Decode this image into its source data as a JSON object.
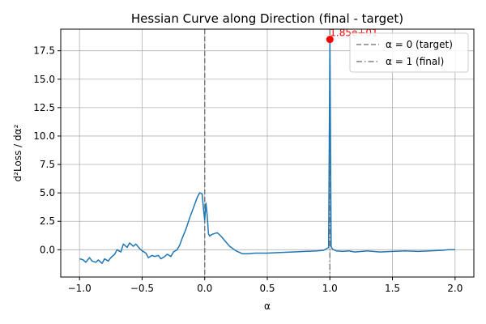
{
  "chart_data": {
    "type": "line",
    "title": "Hessian Curve along Direction (final - target)",
    "xlabel": "α",
    "ylabel": "d²Loss / dα²",
    "xlim": [
      -1.15,
      2.15
    ],
    "ylim": [
      -2.4,
      19.4
    ],
    "xticks": [
      -1.0,
      -0.5,
      0.0,
      0.5,
      1.0,
      1.5,
      2.0
    ],
    "xtick_labels": [
      "−1.0",
      "−0.5",
      "0.0",
      "0.5",
      "1.0",
      "1.5",
      "2.0"
    ],
    "yticks": [
      0.0,
      2.5,
      5.0,
      7.5,
      10.0,
      12.5,
      15.0,
      17.5
    ],
    "ytick_labels": [
      "0.0",
      "2.5",
      "5.0",
      "7.5",
      "10.0",
      "12.5",
      "15.0",
      "17.5"
    ],
    "grid": true,
    "legend_position": "top-right",
    "series": [
      {
        "color": "#1f77b4",
        "x": [
          -1.0,
          -0.97,
          -0.95,
          -0.92,
          -0.9,
          -0.87,
          -0.85,
          -0.82,
          -0.8,
          -0.77,
          -0.75,
          -0.72,
          -0.7,
          -0.67,
          -0.65,
          -0.62,
          -0.6,
          -0.57,
          -0.55,
          -0.52,
          -0.5,
          -0.47,
          -0.45,
          -0.42,
          -0.4,
          -0.37,
          -0.35,
          -0.32,
          -0.3,
          -0.27,
          -0.25,
          -0.22,
          -0.2,
          -0.18,
          -0.15,
          -0.12,
          -0.1,
          -0.08,
          -0.06,
          -0.04,
          -0.02,
          -0.01,
          0.0,
          0.01,
          0.02,
          0.03,
          0.04,
          0.05,
          0.07,
          0.1,
          0.13,
          0.16,
          0.2,
          0.25,
          0.3,
          0.35,
          0.4,
          0.5,
          0.6,
          0.7,
          0.8,
          0.9,
          0.95,
          0.99,
          1.0,
          1.01,
          1.02,
          1.05,
          1.1,
          1.15,
          1.2,
          1.3,
          1.4,
          1.5,
          1.6,
          1.7,
          1.8,
          1.9,
          1.95,
          2.0
        ],
        "y": [
          -0.8,
          -0.9,
          -1.1,
          -0.7,
          -1.0,
          -1.1,
          -0.9,
          -1.2,
          -0.8,
          -1.0,
          -0.7,
          -0.4,
          0.0,
          -0.2,
          0.5,
          0.2,
          0.6,
          0.3,
          0.5,
          0.1,
          -0.1,
          -0.3,
          -0.7,
          -0.5,
          -0.6,
          -0.5,
          -0.8,
          -0.6,
          -0.4,
          -0.6,
          -0.2,
          0.0,
          0.4,
          1.0,
          1.8,
          2.8,
          3.4,
          4.0,
          4.6,
          5.0,
          4.9,
          3.6,
          2.6,
          4.1,
          3.0,
          1.4,
          1.2,
          1.3,
          1.4,
          1.5,
          1.2,
          0.8,
          0.3,
          -0.1,
          -0.35,
          -0.35,
          -0.3,
          -0.3,
          -0.25,
          -0.2,
          -0.15,
          -0.1,
          -0.05,
          0.2,
          18.5,
          0.3,
          0.05,
          -0.1,
          -0.15,
          -0.1,
          -0.2,
          -0.1,
          -0.2,
          -0.15,
          -0.1,
          -0.15,
          -0.1,
          -0.05,
          0.0,
          0.0
        ]
      }
    ],
    "annotations": [
      {
        "x": 1.0,
        "y": 18.5,
        "label": "1.85e+01",
        "color": "#ff0000"
      }
    ],
    "vlines": [
      {
        "x": 0.0,
        "style": "dashed",
        "label": "α = 0 (target)",
        "color": "#808080"
      },
      {
        "x": 1.0,
        "style": "dashdot",
        "label": "α = 1 (final)",
        "color": "#808080"
      }
    ]
  }
}
